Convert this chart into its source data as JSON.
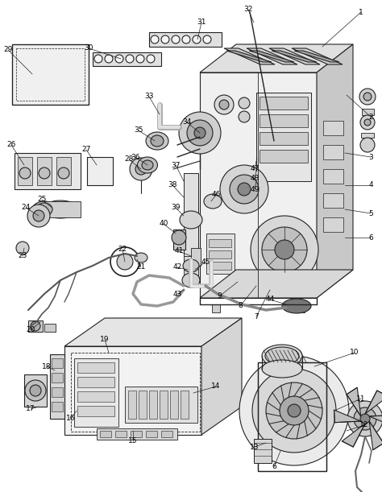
{
  "bg_color": "#ffffff",
  "line_color": "#222222",
  "fig_width": 4.74,
  "fig_height": 6.11,
  "dpi": 100
}
